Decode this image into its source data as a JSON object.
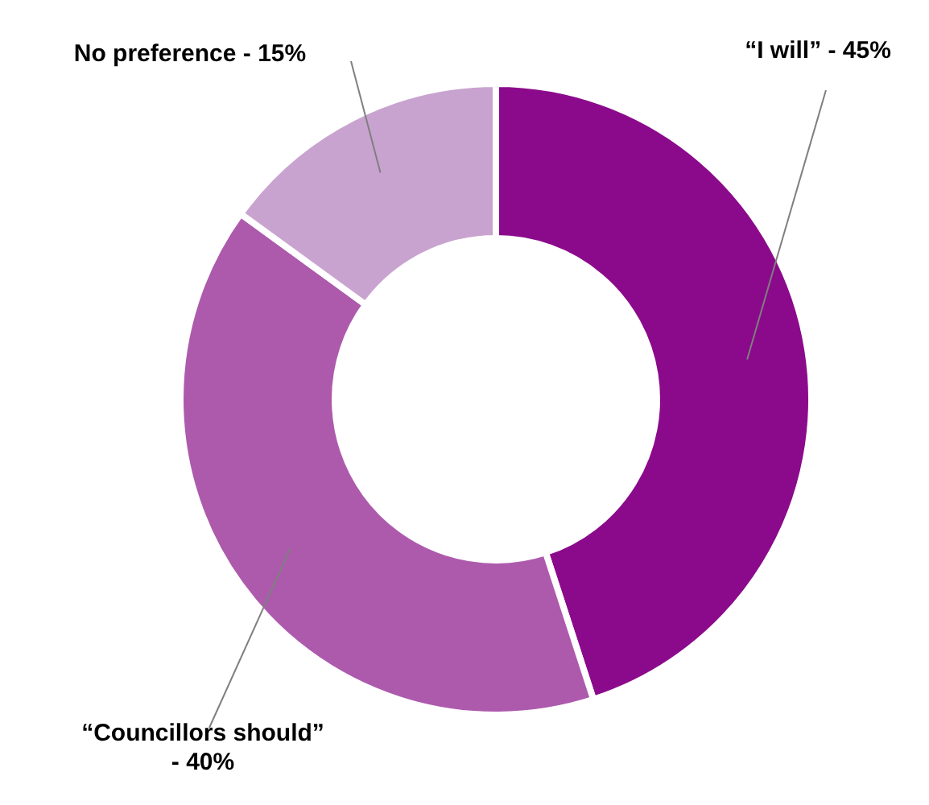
{
  "chart_data": {
    "type": "donut",
    "categories": [
      "“I will” - 45%",
      "“Councillors should” - 40%",
      "No preference - 15%"
    ],
    "values": [
      45,
      40,
      15
    ],
    "colors": [
      "#8b0a8b",
      "#ad5aad",
      "#c9a3cf"
    ],
    "legend": false
  }
}
